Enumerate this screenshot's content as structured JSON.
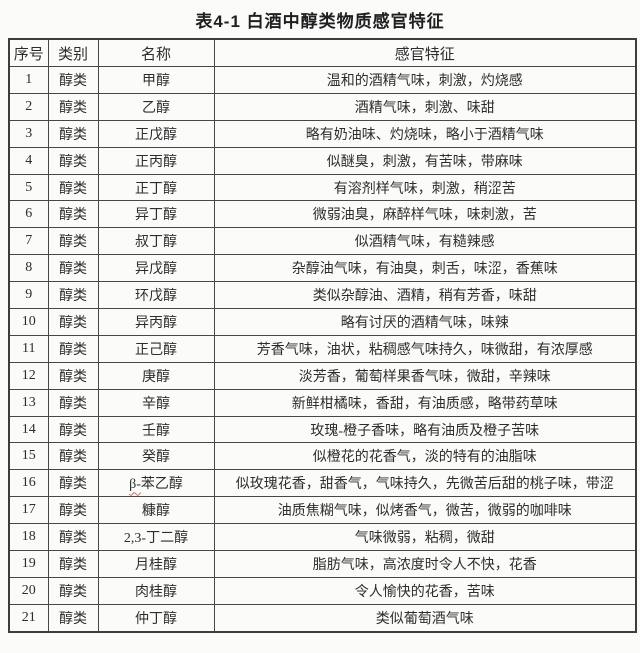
{
  "title": "表4-1 白酒中醇类物质感官特征",
  "colors": {
    "page_background": "#fbfbfa",
    "border": "#474747",
    "text": "#2d2d2d",
    "spellcheck_underline": "#cf6e63"
  },
  "table": {
    "columns": [
      {
        "key": "no",
        "label": "序号"
      },
      {
        "key": "category",
        "label": "类别"
      },
      {
        "key": "name",
        "label": "名称"
      },
      {
        "key": "feature",
        "label": "感官特征"
      }
    ],
    "rows": [
      {
        "no": "1",
        "category": "醇类",
        "name": "甲醇",
        "feature": "温和的酒精气味，刺激，灼烧感"
      },
      {
        "no": "2",
        "category": "醇类",
        "name": "乙醇",
        "feature": "酒精气味，刺激、味甜"
      },
      {
        "no": "3",
        "category": "醇类",
        "name": "正戊醇",
        "feature": "略有奶油味、灼烧味，略小于酒精气味"
      },
      {
        "no": "4",
        "category": "醇类",
        "name": "正丙醇",
        "feature": "似醚臭，刺激，有苦味，带麻味"
      },
      {
        "no": "5",
        "category": "醇类",
        "name": "正丁醇",
        "feature": "有溶剂样气味，刺激，稍涩苦"
      },
      {
        "no": "6",
        "category": "醇类",
        "name": "异丁醇",
        "feature": "微弱油臭，麻醉样气味，味刺激，苦"
      },
      {
        "no": "7",
        "category": "醇类",
        "name": "叔丁醇",
        "feature": "似酒精气味，有糙辣感"
      },
      {
        "no": "8",
        "category": "醇类",
        "name": "异戊醇",
        "feature": "杂醇油气味，有油臭，刺舌，味涩，香蕉味"
      },
      {
        "no": "9",
        "category": "醇类",
        "name": "环戊醇",
        "feature": "类似杂醇油、酒精，稍有芳香，味甜"
      },
      {
        "no": "10",
        "category": "醇类",
        "name": "异丙醇",
        "feature": "略有讨厌的酒精气味，味辣"
      },
      {
        "no": "11",
        "category": "醇类",
        "name": "正己醇",
        "feature": "芳香气味，油状，粘稠感气味持久，味微甜，有浓厚感"
      },
      {
        "no": "12",
        "category": "醇类",
        "name": "庚醇",
        "feature": "淡芳香，葡萄样果香气味，微甜，辛辣味"
      },
      {
        "no": "13",
        "category": "醇类",
        "name": "辛醇",
        "feature": "新鲜柑橘味，香甜，有油质感，略带药草味"
      },
      {
        "no": "14",
        "category": "醇类",
        "name": "壬醇",
        "feature": "玫瑰-橙子香味，略有油质及橙子苦味"
      },
      {
        "no": "15",
        "category": "醇类",
        "name": "癸醇",
        "feature": "似橙花的花香气，淡的特有的油脂味"
      },
      {
        "no": "16",
        "category": "醇类",
        "name": "β-苯乙醇",
        "marked_prefix": "β-",
        "feature": "似玫瑰花香，甜香气，气味持久，先微苦后甜的桃子味，带涩"
      },
      {
        "no": "17",
        "category": "醇类",
        "name": "糠醇",
        "feature": "油质焦糊气味，似烤香气，微苦，微弱的咖啡味"
      },
      {
        "no": "18",
        "category": "醇类",
        "name": "2,3-丁二醇",
        "feature": "气味微弱，粘稠，微甜"
      },
      {
        "no": "19",
        "category": "醇类",
        "name": "月桂醇",
        "feature": "脂肪气味，高浓度时令人不快，花香"
      },
      {
        "no": "20",
        "category": "醇类",
        "name": "肉桂醇",
        "feature": "令人愉快的花香，苦味"
      },
      {
        "no": "21",
        "category": "醇类",
        "name": "仲丁醇",
        "feature": "类似葡萄酒气味"
      }
    ]
  }
}
